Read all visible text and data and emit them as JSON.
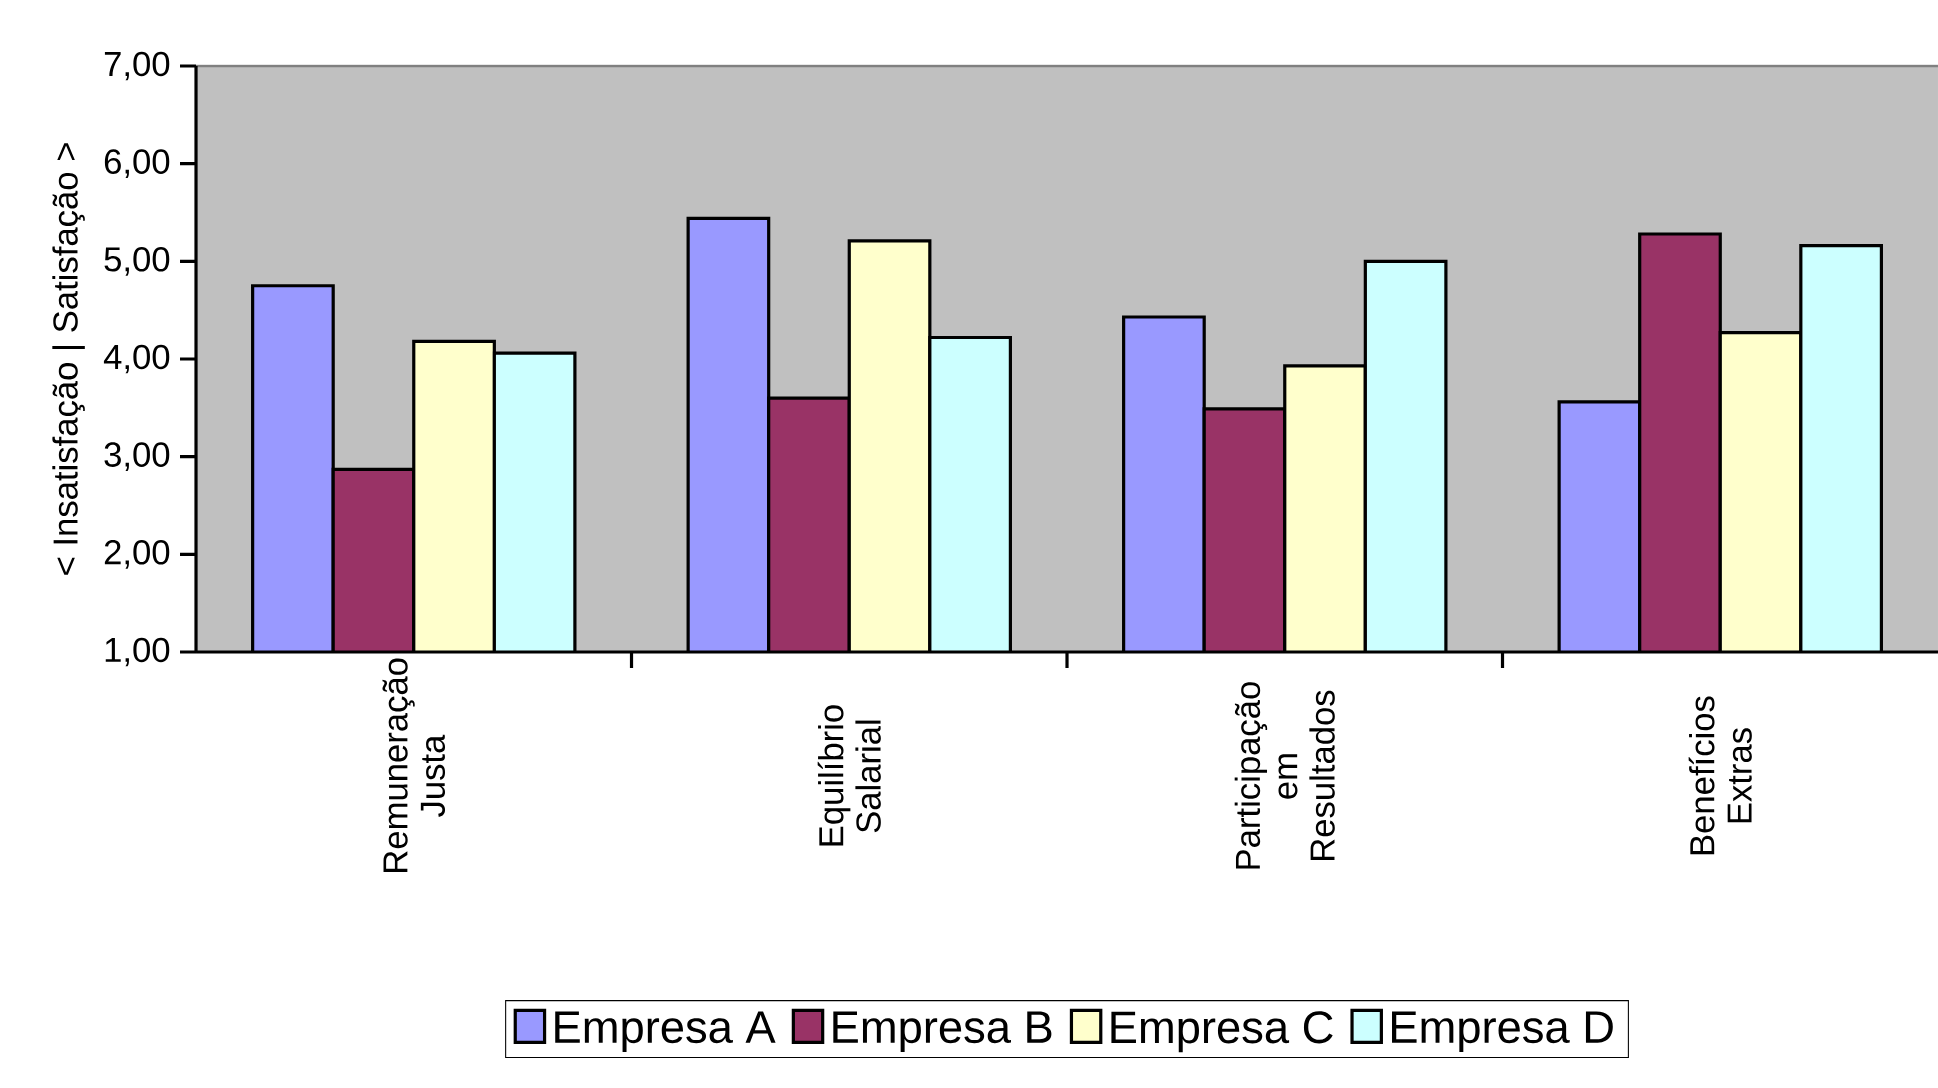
{
  "chart_data": {
    "type": "bar",
    "ylabel": "< Insatisfação  |  Satisfação >",
    "categories": [
      "Remuneração Justa",
      "Equilíbrio Salarial",
      "Participação em Resultados",
      "Benefícios Extras"
    ],
    "series": [
      {
        "name": "Empresa A",
        "color": "#9999ff",
        "values": [
          4.75,
          5.44,
          4.43,
          3.56
        ]
      },
      {
        "name": "Empresa B",
        "color": "#993366",
        "values": [
          2.87,
          3.6,
          3.49,
          5.28
        ]
      },
      {
        "name": "Empresa C",
        "color": "#ffffcc",
        "values": [
          4.18,
          5.21,
          3.93,
          4.27
        ]
      },
      {
        "name": "Empresa D",
        "color": "#ccffff",
        "values": [
          4.06,
          4.22,
          5.0,
          5.16
        ]
      }
    ],
    "ylim": [
      1,
      7
    ],
    "yticks": [
      {
        "value": 1,
        "label": "1,00"
      },
      {
        "value": 2,
        "label": "2,00"
      },
      {
        "value": 3,
        "label": "3,00"
      },
      {
        "value": 4,
        "label": "4,00"
      },
      {
        "value": 5,
        "label": "5,00"
      },
      {
        "value": 6,
        "label": "6,00"
      },
      {
        "value": 7,
        "label": "7,00"
      }
    ],
    "legend": "bottom"
  }
}
